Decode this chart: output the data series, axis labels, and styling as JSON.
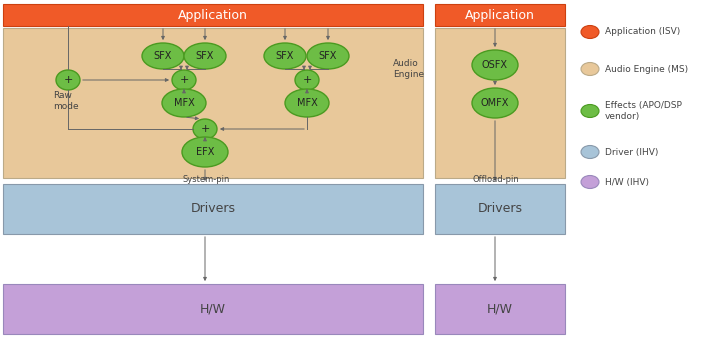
{
  "fig_width": 7.18,
  "fig_height": 3.37,
  "dpi": 100,
  "colors": {
    "orange_app": "#F05A28",
    "tan_engine": "#E8C89A",
    "blue_driver": "#A8C4D8",
    "purple_hw": "#C4A0D8",
    "green_effect": "#6DBD45",
    "green_effect_border": "#4A9A20",
    "white": "#FFFFFF",
    "dark_text": "#444444",
    "arrow_color": "#666666"
  },
  "legend_items": [
    {
      "label": "Application (ISV)",
      "color": "#F05A28",
      "ec": "#CC4010"
    },
    {
      "label": "Audio Engine (MS)",
      "color": "#E8C89A",
      "ec": "#BBAA88"
    },
    {
      "label": "Effects (APO/DSP\nvendor)",
      "color": "#6DBD45",
      "ec": "#4A9A20"
    },
    {
      "label": "Driver (IHV)",
      "color": "#A8C4D8",
      "ec": "#8899AA"
    },
    {
      "label": "H/W (IHV)",
      "color": "#C4A0D8",
      "ec": "#9988BB"
    }
  ]
}
